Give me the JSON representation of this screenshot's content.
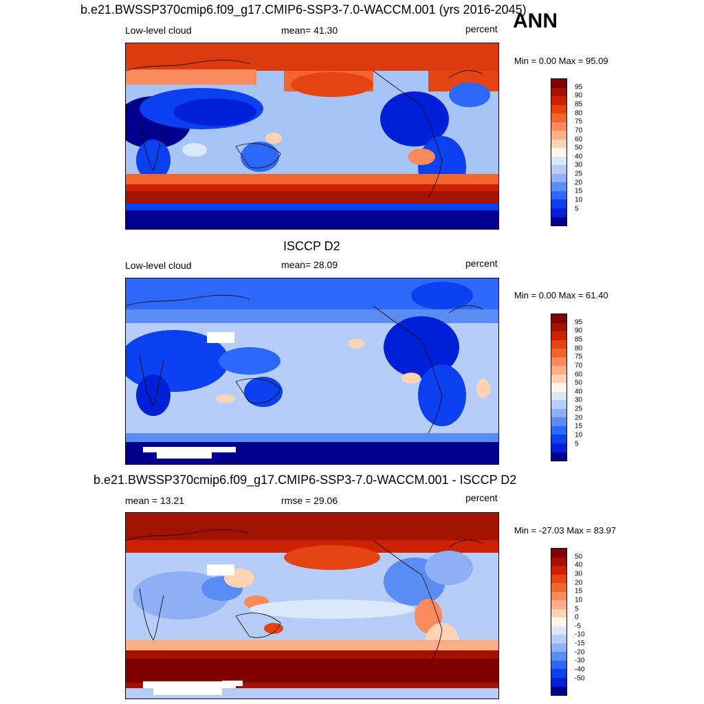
{
  "season": "ANN",
  "colors": {
    "seq": [
      "#00008f",
      "#0020d8",
      "#0a40f0",
      "#2e68f8",
      "#5a8cf4",
      "#8caff6",
      "#b5cdf8",
      "#dae8fb",
      "#fff6e6",
      "#fdd3b4",
      "#fbae86",
      "#f98a5c",
      "#f2662e",
      "#e54312",
      "#cc2200",
      "#a31100",
      "#800000"
    ],
    "diff": [
      "#00008f",
      "#0020d8",
      "#0a40f0",
      "#2e68f8",
      "#5a8cf4",
      "#8caff6",
      "#b5cdf8",
      "#dae8fb",
      "#fff6e6",
      "#fdd3b4",
      "#fbae86",
      "#f98a5c",
      "#f2662e",
      "#e54312",
      "#cc2200",
      "#a31100",
      "#800000"
    ]
  },
  "panels": [
    {
      "title": "b.e21.BWSSP370cmip6.f09_g17.CMIP6-SSP3-7.0-WACCM.001 (yrs 2016-2045)",
      "left_text": "Low-level cloud",
      "center_text": "mean=  41.30",
      "units": "percent",
      "minmax": "Min =   0.00 Max =  95.09",
      "labels": [
        "95",
        "90",
        "85",
        "80",
        "75",
        "70",
        "60",
        "50",
        "40",
        "30",
        "25",
        "20",
        "15",
        "10",
        "5"
      ]
    },
    {
      "title": "ISCCP D2",
      "left_text": "Low-level cloud",
      "center_text": "mean=  28.09",
      "units": "percent",
      "minmax": "Min =   0.00 Max =  61.40",
      "labels": [
        "95",
        "90",
        "85",
        "80",
        "75",
        "70",
        "60",
        "50",
        "40",
        "30",
        "25",
        "20",
        "15",
        "10",
        "5"
      ]
    },
    {
      "title": "b.e21.BWSSP370cmip6.f09_g17.CMIP6-SSP3-7.0-WACCM.001 - ISCCP D2",
      "left_text": "mean =  13.21",
      "center_text": "rmse =  29.06",
      "units": "percent",
      "minmax": "Min = -27.03 Max =  83.97",
      "labels": [
        "50",
        "40",
        "30",
        "20",
        "15",
        "10",
        "5",
        "0",
        "-5",
        "-10",
        "-15",
        "-20",
        "-30",
        "-40",
        "-50"
      ]
    }
  ]
}
